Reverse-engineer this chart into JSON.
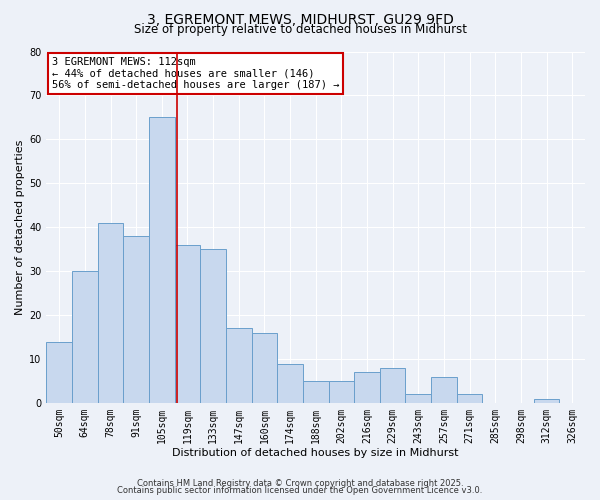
{
  "title": "3, EGREMONT MEWS, MIDHURST, GU29 9FD",
  "subtitle": "Size of property relative to detached houses in Midhurst",
  "xlabel": "Distribution of detached houses by size in Midhurst",
  "ylabel": "Number of detached properties",
  "bar_labels": [
    "50sqm",
    "64sqm",
    "78sqm",
    "91sqm",
    "105sqm",
    "119sqm",
    "133sqm",
    "147sqm",
    "160sqm",
    "174sqm",
    "188sqm",
    "202sqm",
    "216sqm",
    "229sqm",
    "243sqm",
    "257sqm",
    "271sqm",
    "285sqm",
    "298sqm",
    "312sqm",
    "326sqm"
  ],
  "bar_values": [
    14,
    30,
    41,
    38,
    65,
    36,
    35,
    17,
    16,
    9,
    5,
    5,
    7,
    8,
    2,
    6,
    2,
    0,
    0,
    1,
    0
  ],
  "bar_color": "#c8d8ee",
  "bar_edge_color": "#6a9fcc",
  "ylim": [
    0,
    80
  ],
  "yticks": [
    0,
    10,
    20,
    30,
    40,
    50,
    60,
    70,
    80
  ],
  "property_line_value": 4.6,
  "property_line_color": "#cc0000",
  "annotation_line1": "3 EGREMONT MEWS: 112sqm",
  "annotation_line2": "← 44% of detached houses are smaller (146)",
  "annotation_line3": "56% of semi-detached houses are larger (187) →",
  "annotation_box_color": "#ffffff",
  "annotation_box_edge": "#cc0000",
  "footer1": "Contains HM Land Registry data © Crown copyright and database right 2025.",
  "footer2": "Contains public sector information licensed under the Open Government Licence v3.0.",
  "bg_color": "#edf1f8",
  "grid_color": "#ffffff",
  "title_fontsize": 10,
  "subtitle_fontsize": 8.5,
  "axis_label_fontsize": 8,
  "tick_fontsize": 7,
  "annotation_fontsize": 7.5,
  "footer_fontsize": 6
}
